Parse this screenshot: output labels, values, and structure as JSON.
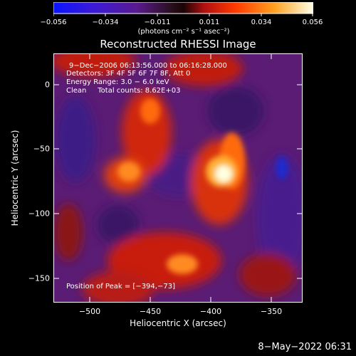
{
  "colorbar": {
    "tick_labels": [
      "−0.056",
      "−0.034",
      "−0.011",
      "0.011",
      "0.034",
      "0.056"
    ],
    "unit_label": "(photons cm⁻² s⁻¹ asec⁻²)"
  },
  "title": "Reconstructed RHESSI Image",
  "annotations": {
    "time_range": "9−Dec−2006 06:13:56.000 to 06:16:28.000",
    "detectors": "Detectors: 3F 4F 5F 6F 7F 8F, Att 0",
    "energy": "Energy Range: 3.0 − 6.0 keV",
    "method": "Clean     Total counts: 8.62E+03",
    "peak": "Position of Peak = [−394,−73]"
  },
  "axes": {
    "xlabel": "Heliocentric X (arcsec)",
    "ylabel": "Heliocentric Y (arcsec)",
    "x_ticks": [
      "−500",
      "−450",
      "−400",
      "−350"
    ],
    "y_ticks": [
      "0",
      "−50",
      "−100",
      "−150"
    ]
  },
  "footer_date": "8−May−2022 06:31"
}
